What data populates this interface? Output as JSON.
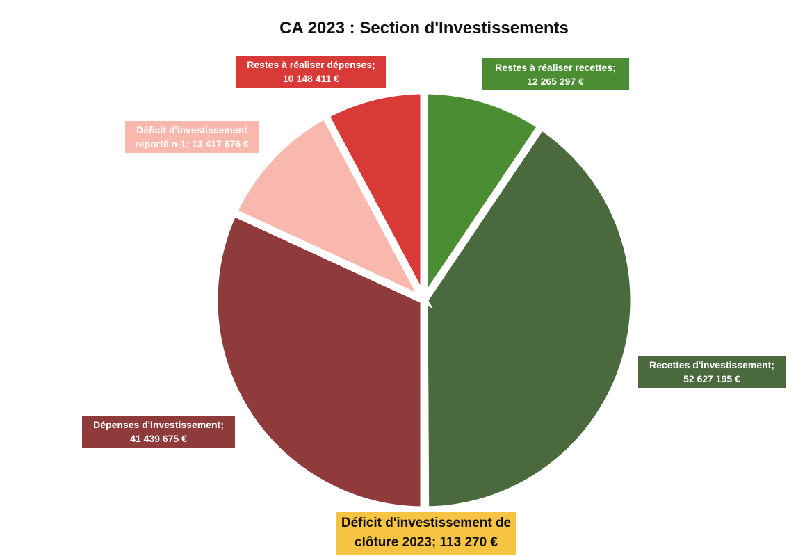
{
  "chart_data": {
    "type": "pie",
    "title": "CA 2023 : Section d'Investissements",
    "categories": [
      "Restes à réaliser recettes;",
      "Recettes d'investissement;",
      "Déficit d'investissement de clôture 2023;",
      "Dépenses d'Investissement;",
      "Déficit d'investissement reporté n-1;",
      "Restes à réaliser dépenses;"
    ],
    "values": [
      12265297,
      52627195,
      113270,
      41439675,
      13417676,
      10148411
    ],
    "value_labels": [
      "12 265 297 €",
      "52 627 195 €",
      "113 270 €",
      "41 439 675 €",
      "13 417 676 €",
      "10 148 411 €"
    ],
    "colors": [
      "#4b8d33",
      "#4a6a3e",
      "#f6c343",
      "#8f3b3c",
      "#f9b8ad",
      "#d83b37"
    ]
  }
}
